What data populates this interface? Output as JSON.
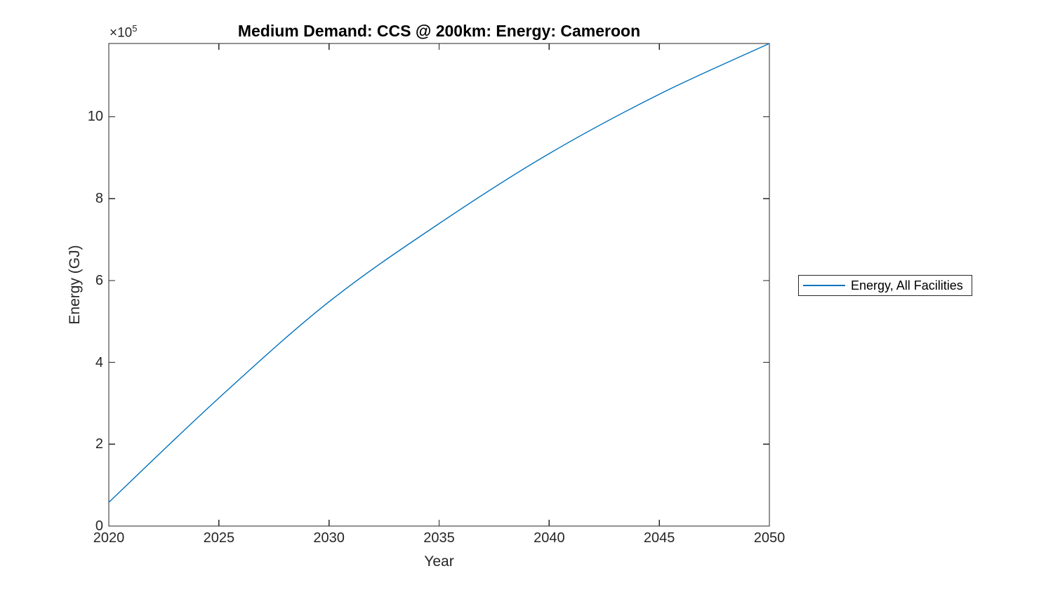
{
  "figure": {
    "title": "Medium Demand: CCS @ 200km: Energy: Cameroon",
    "xlabel": "Year",
    "ylabel": "Energy (GJ)",
    "y_axis_multiplier_base": "×10",
    "y_axis_multiplier_exponent": "5",
    "legend": {
      "entries": [
        {
          "label": "Energy, All Facilities"
        }
      ]
    },
    "colors": {
      "line": "#0072BD",
      "axis": "#262626",
      "tick_label": "#262626",
      "title": "#000000",
      "background": "#FFFFFF",
      "legend_border": "#262626"
    }
  },
  "chart_data": {
    "type": "line",
    "title": "Medium Demand: CCS @ 200km: Energy: Cameroon",
    "xlabel": "Year",
    "ylabel": "Energy (GJ)",
    "xlim": [
      2020,
      2050
    ],
    "ylim": [
      0,
      1179000
    ],
    "x_tick_values": [
      2020,
      2025,
      2030,
      2035,
      2040,
      2045,
      2050
    ],
    "x_tick_labels": [
      "2020",
      "2025",
      "2030",
      "2035",
      "2040",
      "2045",
      "2050"
    ],
    "y_tick_values": [
      0,
      200000,
      400000,
      600000,
      800000,
      1000000
    ],
    "y_tick_labels": [
      "0",
      "2",
      "4",
      "6",
      "8",
      "10"
    ],
    "y_tick_scale": "×10^5",
    "grid": false,
    "legend_position": "outside-right",
    "series": [
      {
        "name": "Energy, All Facilities",
        "color": "#0072BD",
        "x": [
          2020,
          2025,
          2030,
          2035,
          2040,
          2045,
          2050
        ],
        "y": [
          58000,
          313000,
          548000,
          739000,
          910000,
          1055000,
          1179000
        ]
      }
    ]
  }
}
